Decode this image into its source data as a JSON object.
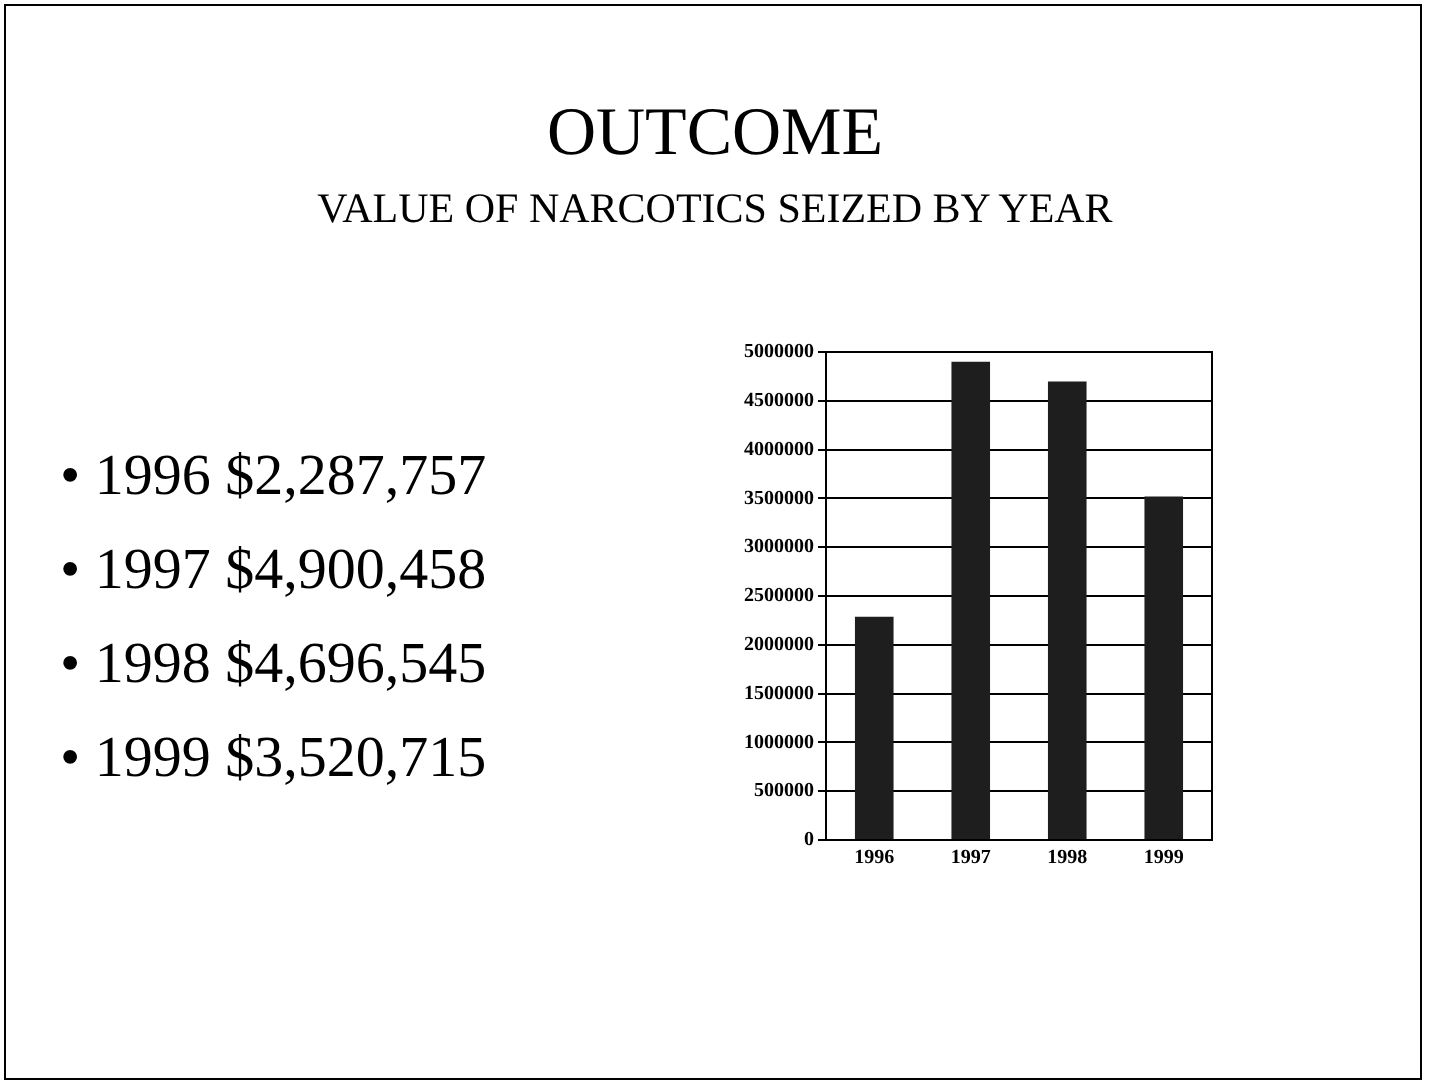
{
  "chart_data": {
    "type": "bar",
    "title": "OUTCOME",
    "subtitle": "VALUE OF NARCOTICS SEIZED BY YEAR",
    "categories": [
      "1996",
      "1997",
      "1998",
      "1999"
    ],
    "values": [
      2287757,
      4900458,
      4696545,
      3520715
    ],
    "annotations": [
      "• 1996 $2,287,757",
      "• 1997 $4,900,458",
      "• 1998 $4,696,545",
      "• 1999 $3,520,715"
    ],
    "color": "#1e1e1e",
    "ylim": [
      0,
      5000000
    ],
    "yticks": [
      0,
      500000,
      1000000,
      1500000,
      2000000,
      2500000,
      3000000,
      3500000,
      4000000,
      4500000,
      5000000
    ],
    "grid": "y",
    "legend": false
  }
}
